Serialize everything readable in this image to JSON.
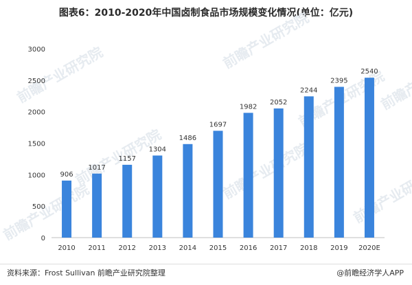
{
  "chart_data": {
    "type": "bar",
    "title": "图表6：2010-2020年中国卤制食品市场规模变化情况(单位：亿元)",
    "categories": [
      "2010",
      "2011",
      "2012",
      "2013",
      "2014",
      "2015",
      "2016",
      "2017",
      "2018",
      "2019",
      "2020E"
    ],
    "series": [
      {
        "values": [
          906,
          1017,
          1157,
          1304,
          1486,
          1697,
          1982,
          2052,
          2244,
          2395,
          2540
        ]
      }
    ],
    "data_labels": [
      "906",
      "1017",
      "1157",
      "1304",
      "1486",
      "1697",
      "1982",
      "2052",
      "2244",
      "2395",
      "2540"
    ],
    "ylim": [
      0,
      3000
    ],
    "yticks": [
      0,
      500,
      1000,
      1500,
      2000,
      2500,
      3000
    ],
    "ytick_labels": [
      "0",
      "500",
      "1000",
      "1500",
      "2000",
      "2500",
      "3000"
    ],
    "grid": false,
    "legend": "none",
    "bar_color": "#3a84dc",
    "xlabel": "",
    "ylabel": ""
  },
  "footer": {
    "source": "资料来源：Frost Sullivan 前瞻产业研究院整理",
    "credit": "@前瞻经济学人APP"
  },
  "watermark": {
    "text": "前瞻产业研究院",
    "color": "#e6ebf0"
  }
}
